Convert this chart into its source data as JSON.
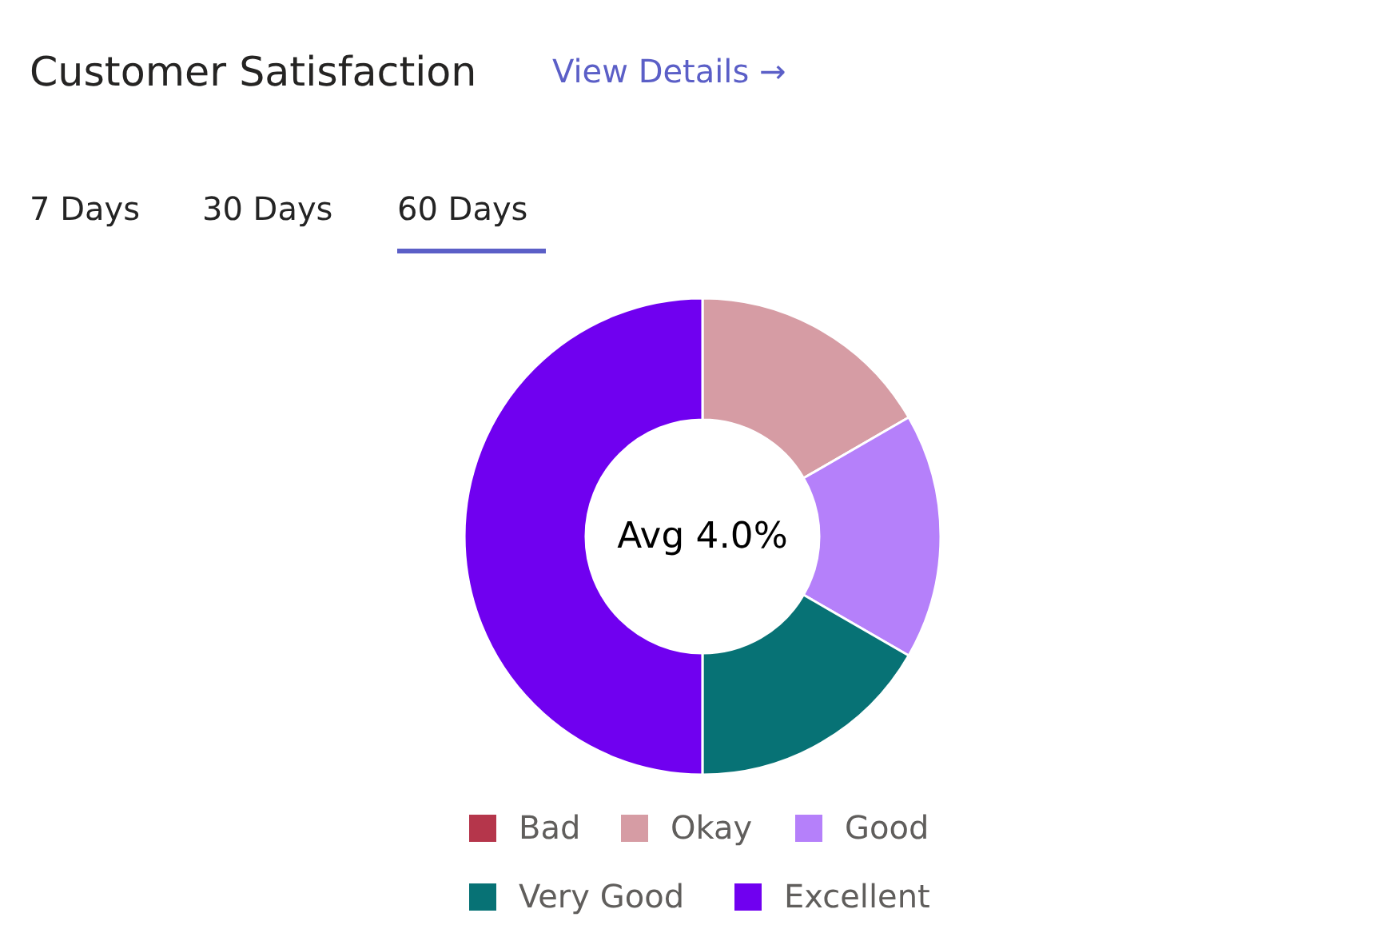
{
  "chart_data": {
    "type": "donut",
    "title": "Customer Satisfaction",
    "categories": [
      "Bad",
      "Okay",
      "Good",
      "Very Good",
      "Excellent"
    ],
    "values": [
      0,
      16.67,
      16.67,
      16.67,
      50
    ],
    "colors": [
      "#b5364b",
      "#d69ca4",
      "#b580fa",
      "#077275",
      "#7000f0"
    ],
    "annotations": [
      "View Details →",
      "7 Days",
      "30 Days",
      "60 Days",
      "Avg 4.0%"
    ],
    "legend": "bottom"
  }
}
